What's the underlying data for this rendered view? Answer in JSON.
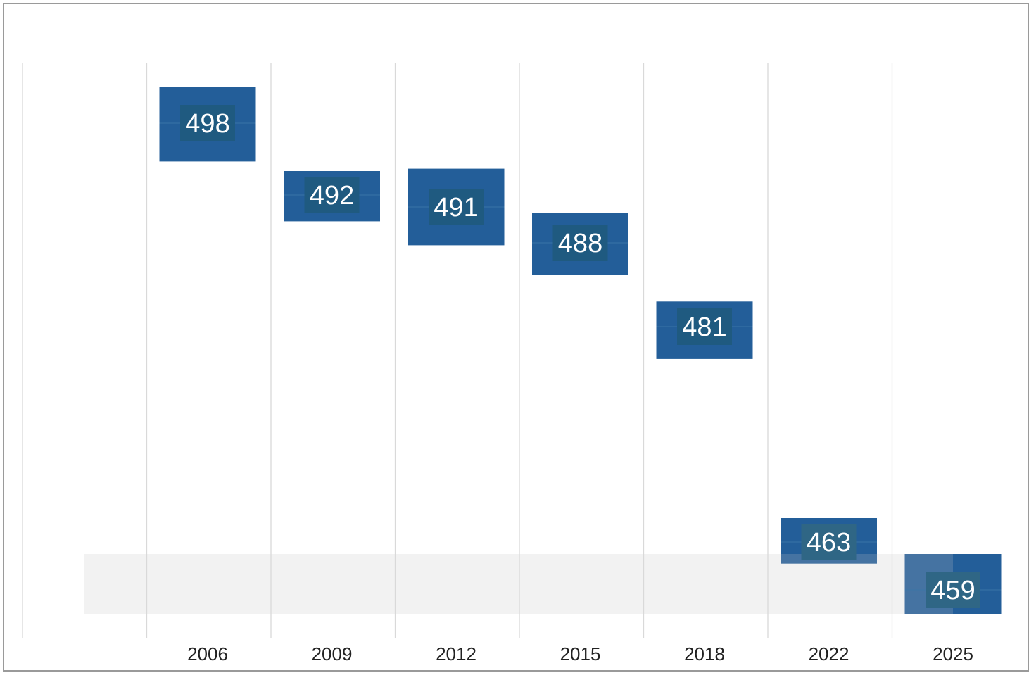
{
  "chart_data": {
    "type": "bar",
    "categories": [
      "2006",
      "2009",
      "2012",
      "2015",
      "2018",
      "2022",
      "2025"
    ],
    "values": [
      498,
      492,
      491,
      488,
      481,
      463,
      459
    ],
    "ranges": [
      [
        494.8,
        501.0
      ],
      [
        489.8,
        494.0
      ],
      [
        487.8,
        494.2
      ],
      [
        485.3,
        490.5
      ],
      [
        478.3,
        483.1
      ],
      [
        461.2,
        465.0
      ],
      [
        457.0,
        462.0
      ]
    ],
    "title": "",
    "xlabel": "",
    "ylabel": "",
    "ylim": [
      455,
      503
    ],
    "highlight_band": [
      457,
      462
    ],
    "grid": "vertical",
    "legend": "none",
    "colors": {
      "bar": "#235e99",
      "bar_faded": "#4573a2",
      "label_box": "#1f5a80",
      "label_box_faded": "#2f6685",
      "band": "#f2f2f2",
      "grid": "#d9d9d9"
    }
  }
}
